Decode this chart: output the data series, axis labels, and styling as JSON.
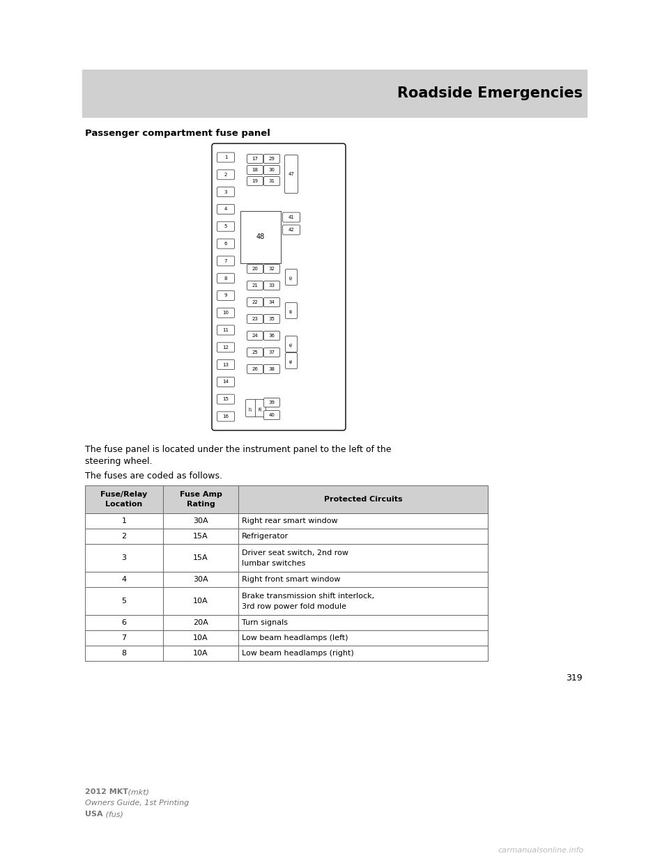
{
  "page_bg": "#ffffff",
  "header_bg": "#d0d0d0",
  "header_text": "Roadside Emergencies",
  "header_text_color": "#000000",
  "section_title": "Passenger compartment fuse panel",
  "body_text1": "The fuse panel is located under the instrument panel to the left of the",
  "body_text2": "steering wheel.",
  "body_text3": "The fuses are coded as follows.",
  "page_number": "319",
  "footer_line1_bold": "2012 MKT",
  "footer_line1_italic": " (mkt)",
  "footer_line2": "Owners Guide, 1st Printing",
  "footer_line3_bold": "USA",
  "footer_line3_italic": " (fus)",
  "watermark": "carmanualsonline.info",
  "table_headers": [
    "Fuse/Relay\nLocation",
    "Fuse Amp\nRating",
    "Protected Circuits"
  ],
  "table_data": [
    [
      "1",
      "30A",
      "Right rear smart window"
    ],
    [
      "2",
      "15A",
      "Refrigerator"
    ],
    [
      "3",
      "15A",
      "Driver seat switch, 2nd row\nlumbar switches"
    ],
    [
      "4",
      "30A",
      "Right front smart window"
    ],
    [
      "5",
      "10A",
      "Brake transmission shift interlock,\n3rd row power fold module"
    ],
    [
      "6",
      "20A",
      "Turn signals"
    ],
    [
      "7",
      "10A",
      "Low beam headlamps (left)"
    ],
    [
      "8",
      "10A",
      "Low beam headlamps (right)"
    ]
  ],
  "fuse_diagram": {
    "left_fuses": [
      "1",
      "2",
      "3",
      "4",
      "5",
      "6",
      "7",
      "8",
      "9",
      "10",
      "11",
      "12",
      "13",
      "14",
      "15",
      "16"
    ],
    "mid_top_fuses_col1": [
      "17",
      "18",
      "19"
    ],
    "mid_top_fuses_col2": [
      "29",
      "30",
      "31"
    ],
    "relay_47_label": "47",
    "relay_48_label": "48",
    "right_small_41": "41",
    "right_small_42": "42",
    "mid_bot_col1": [
      "20",
      "21",
      "22",
      "23",
      "24",
      "25",
      "26"
    ],
    "mid_bot_col2": [
      "32",
      "33",
      "34",
      "35",
      "36",
      "37",
      "38"
    ],
    "right_relays": [
      "43",
      "44",
      "45",
      "46"
    ],
    "bottom_small": [
      "27",
      "28"
    ],
    "bottom_fuses": [
      "39",
      "40"
    ]
  }
}
